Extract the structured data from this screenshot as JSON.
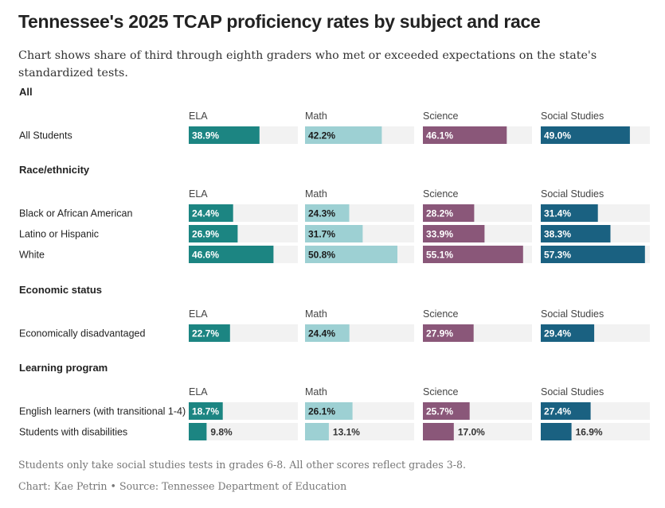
{
  "title": "Tennessee's 2025 TCAP proficiency rates by subject and race",
  "subtitle": "Chart shows share of third through eighth graders who met or exceeded expectations on the state's standardized tests.",
  "footnote": "Students only take social studies tests in grades 6-8. All other scores reflect grades 3-8.",
  "credit": "Chart: Kae Petrin • Source: Tennessee Department of Education",
  "colors": {
    "ELA": "#1c8582",
    "Math": "#9dd0d3",
    "Science": "#8a5779",
    "Social Studies": "#1a6181",
    "track": "#f2f2f2"
  },
  "chart_data": {
    "type": "bar",
    "subjects": [
      "ELA",
      "Math",
      "Science",
      "Social Studies"
    ],
    "value_suffix": "%",
    "sections": [
      {
        "name": "All",
        "rows": [
          {
            "label": "All Students",
            "values": [
              38.9,
              42.2,
              46.1,
              49.0
            ]
          }
        ]
      },
      {
        "name": "Race/ethnicity",
        "rows": [
          {
            "label": "Black or African American",
            "values": [
              24.4,
              24.3,
              28.2,
              31.4
            ]
          },
          {
            "label": "Latino or Hispanic",
            "values": [
              26.9,
              31.7,
              33.9,
              38.3
            ]
          },
          {
            "label": "White",
            "values": [
              46.6,
              50.8,
              55.1,
              57.3
            ]
          }
        ]
      },
      {
        "name": "Economic status",
        "rows": [
          {
            "label": "Economically disadvantaged",
            "values": [
              22.7,
              24.4,
              27.9,
              29.4
            ]
          }
        ]
      },
      {
        "name": "Learning program",
        "rows": [
          {
            "label": "English learners (with transitional 1-4)",
            "values": [
              18.7,
              26.1,
              25.7,
              27.4
            ]
          },
          {
            "label": "Students with disabilities",
            "values": [
              9.8,
              13.1,
              17.0,
              16.9
            ]
          }
        ]
      }
    ]
  }
}
